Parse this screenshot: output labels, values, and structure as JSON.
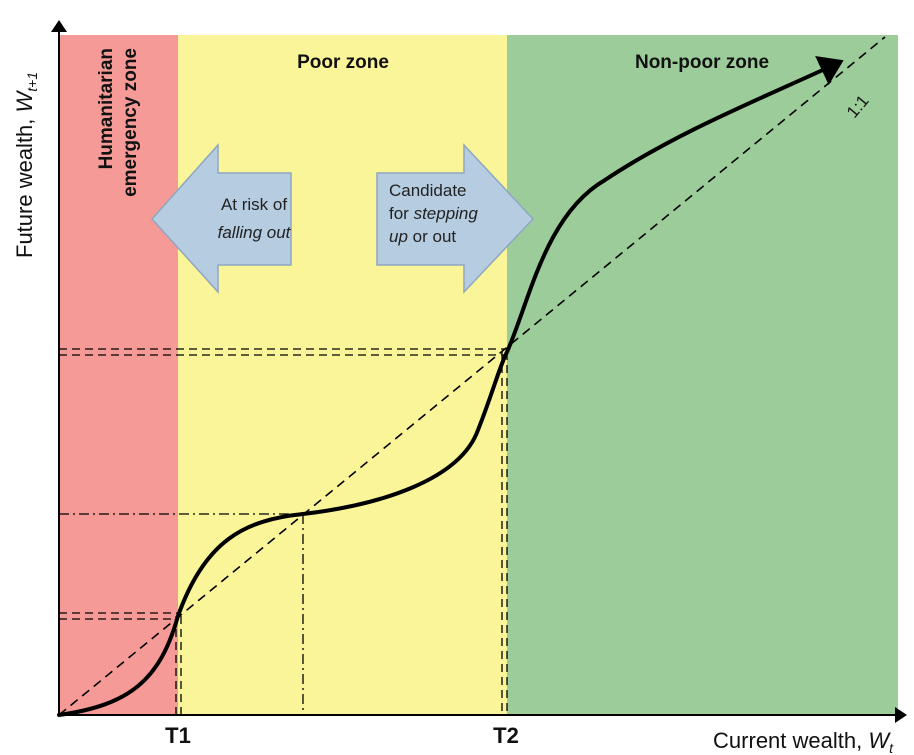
{
  "zones": {
    "emergency": {
      "title": "Humanitarian emergency zone",
      "line1": "Humanitarian",
      "line2": "emergency zone",
      "color": "#f59a96"
    },
    "poor": {
      "title": "Poor zone",
      "color": "#fbf59a"
    },
    "nonpoor": {
      "title": "Non-poor zone",
      "color": "#9ccc99"
    }
  },
  "arrows": {
    "left": {
      "line1": "At risk of",
      "line2": "falling out",
      "color": "#b6cce0"
    },
    "right": {
      "line1": "Candidate",
      "line2_plain": "for ",
      "line2_italic": "stepping",
      "line3_italic": "up",
      "line3_plain": " or out",
      "color": "#b6cce0"
    }
  },
  "thresholds": {
    "t1": "T1",
    "t2": "T2"
  },
  "axes": {
    "x": {
      "text": "Current wealth, ",
      "var": "W",
      "sub": "t"
    },
    "y": {
      "text": "Future wealth, ",
      "var": "W",
      "sub": "t+1"
    }
  },
  "reference_line": {
    "label": "1:1"
  }
}
